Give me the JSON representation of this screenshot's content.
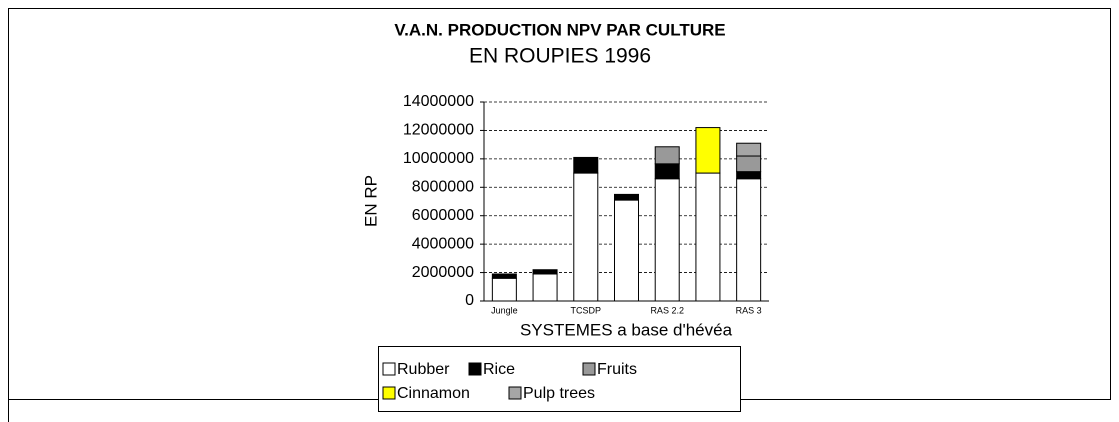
{
  "chart_data": {
    "type": "bar",
    "stacked": true,
    "title": "V.A.N. PRODUCTION NPV PAR CULTURE",
    "subtitle": "EN ROUPIES 1996",
    "y_label": "EN RP",
    "x_label": "SYSTEMES a base d'hévéa",
    "categories": [
      "Jungle",
      null,
      "TCSDP",
      null,
      "RAS 2.2",
      null,
      "RAS 3"
    ],
    "series": [
      {
        "name": "Rubber",
        "color": "#ffffff",
        "values": [
          1600000,
          1900000,
          9000000,
          7100000,
          8600000,
          9000000,
          8600000
        ]
      },
      {
        "name": "Rice",
        "color": "#000000",
        "values": [
          300000,
          300000,
          1100000,
          400000,
          1050000,
          null,
          500000
        ]
      },
      {
        "name": "Fruits",
        "color": "#999999",
        "values": [
          null,
          null,
          null,
          null,
          1200000,
          null,
          1100000
        ]
      },
      {
        "name": "Cinnamon",
        "color": "#ffff00",
        "values": [
          null,
          null,
          null,
          null,
          null,
          3200000,
          null
        ]
      },
      {
        "name": "Pulp trees",
        "color": "#a6a6a6",
        "values": [
          null,
          null,
          null,
          null,
          null,
          null,
          900000
        ]
      }
    ],
    "ylim": [
      0,
      14000000
    ],
    "yticks": [
      0,
      2000000,
      4000000,
      6000000,
      8000000,
      10000000,
      12000000,
      14000000
    ],
    "grid": true
  }
}
